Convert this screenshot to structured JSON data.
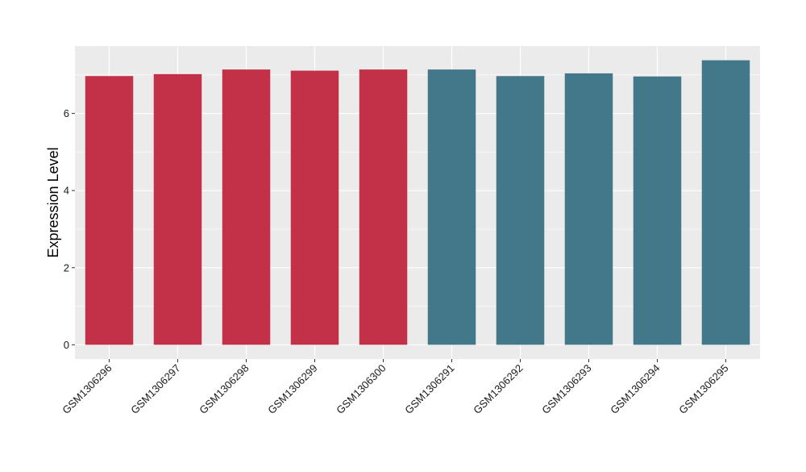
{
  "chart_data": {
    "type": "bar",
    "title": "",
    "xlabel": "",
    "ylabel": "Expression Level",
    "categories": [
      "GSM1306296",
      "GSM1306297",
      "GSM1306298",
      "GSM1306299",
      "GSM1306300",
      "GSM1306291",
      "GSM1306292",
      "GSM1306293",
      "GSM1306294",
      "GSM1306295"
    ],
    "values": [
      6.97,
      7.02,
      7.14,
      7.11,
      7.14,
      7.14,
      6.97,
      7.04,
      6.96,
      7.38
    ],
    "bar_colors": [
      "#C33149",
      "#C33149",
      "#C33149",
      "#C33149",
      "#C33149",
      "#43788A",
      "#43788A",
      "#43788A",
      "#43788A",
      "#43788A"
    ],
    "ylim": [
      -0.37,
      7.75
    ],
    "yticks": [
      0,
      2,
      4,
      6
    ],
    "ytick_labels": [
      "0",
      "2",
      "4",
      "6"
    ],
    "grid": true,
    "legend": "none",
    "panel_background": "#EBEBEB",
    "grid_color": "#FFFFFF"
  }
}
